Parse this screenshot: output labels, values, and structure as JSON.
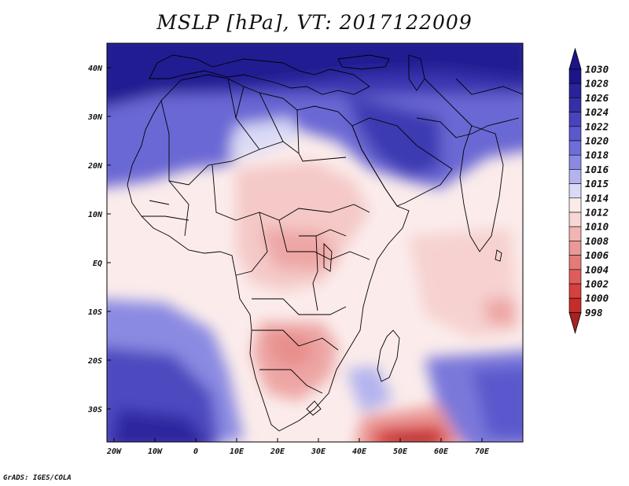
{
  "title": "MSLP [hPa], VT: 2017122009",
  "credit": "GrADS: IGES/COLA",
  "map": {
    "lat_labels": [
      "40N",
      "30N",
      "20N",
      "10N",
      "EQ",
      "10S",
      "20S",
      "30S"
    ],
    "lon_labels": [
      "20W",
      "10W",
      "0",
      "10E",
      "20E",
      "30E",
      "40E",
      "50E",
      "60E",
      "70E"
    ]
  },
  "colorbar": {
    "levels": [
      "1030",
      "1028",
      "1026",
      "1024",
      "1022",
      "1020",
      "1018",
      "1016",
      "1015",
      "1014",
      "1012",
      "1010",
      "1008",
      "1006",
      "1004",
      "1002",
      "1000",
      "998"
    ],
    "colors": [
      "#1c1488",
      "#2a2299",
      "#3530a8",
      "#4944bd",
      "#5b58cc",
      "#6e6ed8",
      "#8a8ae2",
      "#b3b3ee",
      "#dadaf7",
      "#fbeceb",
      "#f7d6d5",
      "#f1b5b3",
      "#eb9896",
      "#e47b78",
      "#de5d5a",
      "#d6403d",
      "#c42d2a",
      "#a82221"
    ]
  }
}
